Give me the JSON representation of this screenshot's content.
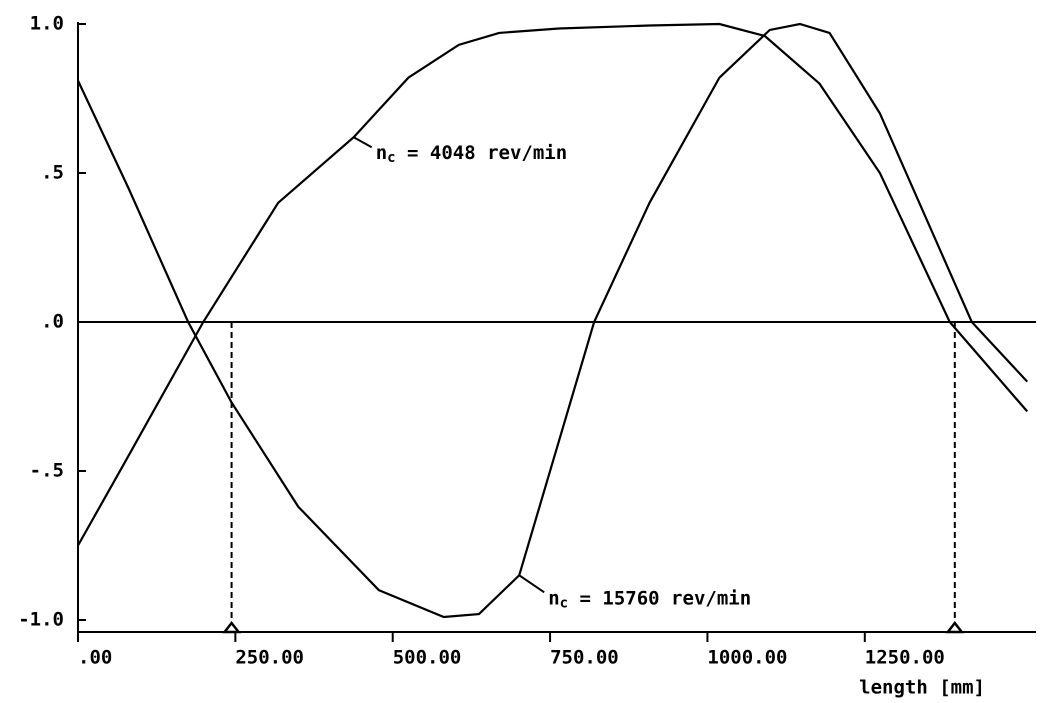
{
  "chart_data": {
    "type": "line",
    "x_label": "length [mm]",
    "xlim": [
      0,
      1522
    ],
    "ylim": [
      -1.0,
      1.0
    ],
    "xticks": [
      {
        "value": 0,
        "label": ".00"
      },
      {
        "value": 250,
        "label": "250.00"
      },
      {
        "value": 500,
        "label": "500.00"
      },
      {
        "value": 750,
        "label": "750.00"
      },
      {
        "value": 1000,
        "label": "1000.00"
      },
      {
        "value": 1250,
        "label": "1250.00"
      }
    ],
    "yticks": [
      {
        "value": 1.0,
        "label": "1.0"
      },
      {
        "value": 0.5,
        "label": ".5"
      },
      {
        "value": 0.0,
        "label": ".0"
      },
      {
        "value": -0.5,
        "label": "-.5"
      },
      {
        "value": -1.0,
        "label": "-1.0"
      }
    ],
    "vlines": [
      244,
      1393
    ],
    "series": [
      {
        "annotation": [
          "n",
          "c",
          " = 4048 rev/min"
        ],
        "color": "#000000",
        "x": [
          0,
          80,
          199,
          318,
          438,
          525,
          605,
          669,
          764,
          908,
          1019,
          1091,
          1178,
          1274,
          1385,
          1508
        ],
        "values": [
          -0.75,
          -0.45,
          0.0,
          0.4,
          0.62,
          0.82,
          0.93,
          0.97,
          0.985,
          0.995,
          1.0,
          0.96,
          0.8,
          0.5,
          0.0,
          -0.3
        ]
      },
      {
        "annotation": [
          "n",
          "c",
          " = 15760 rev/min"
        ],
        "color": "#000000",
        "x": [
          0,
          80,
          175,
          244,
          350,
          478,
          581,
          637,
          701,
          820,
          908,
          1019,
          1099,
          1147,
          1194,
          1274,
          1420,
          1508
        ],
        "values": [
          0.81,
          0.45,
          0.0,
          -0.27,
          -0.62,
          -0.9,
          -0.99,
          -0.98,
          -0.85,
          0.0,
          0.4,
          0.82,
          0.98,
          1.0,
          0.97,
          0.7,
          0.0,
          -0.2
        ]
      }
    ]
  }
}
